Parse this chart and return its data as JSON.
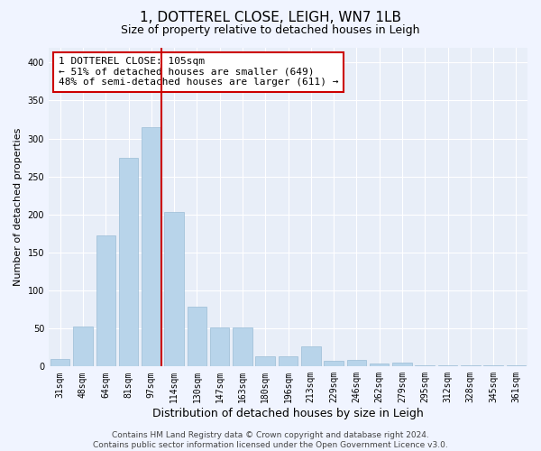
{
  "title": "1, DOTTEREL CLOSE, LEIGH, WN7 1LB",
  "subtitle": "Size of property relative to detached houses in Leigh",
  "xlabel": "Distribution of detached houses by size in Leigh",
  "ylabel": "Number of detached properties",
  "bar_color": "#b8d4ea",
  "bar_edge_color": "#9bbdd6",
  "background_color": "#e8eef8",
  "grid_color": "#ffffff",
  "categories": [
    "31sqm",
    "48sqm",
    "64sqm",
    "81sqm",
    "97sqm",
    "114sqm",
    "130sqm",
    "147sqm",
    "163sqm",
    "180sqm",
    "196sqm",
    "213sqm",
    "229sqm",
    "246sqm",
    "262sqm",
    "279sqm",
    "295sqm",
    "312sqm",
    "328sqm",
    "345sqm",
    "361sqm"
  ],
  "values": [
    10,
    53,
    172,
    275,
    315,
    203,
    79,
    52,
    51,
    14,
    14,
    26,
    7,
    9,
    4,
    5,
    2,
    1,
    1,
    1,
    1
  ],
  "ylim": [
    0,
    420
  ],
  "yticks": [
    0,
    50,
    100,
    150,
    200,
    250,
    300,
    350,
    400
  ],
  "vline_x_index": 4,
  "annotation_text": "1 DOTTEREL CLOSE: 105sqm\n← 51% of detached houses are smaller (649)\n48% of semi-detached houses are larger (611) →",
  "annotation_box_color": "#ffffff",
  "annotation_box_edge_color": "#cc0000",
  "vline_color": "#cc0000",
  "footer_text": "Contains HM Land Registry data © Crown copyright and database right 2024.\nContains public sector information licensed under the Open Government Licence v3.0.",
  "title_fontsize": 11,
  "subtitle_fontsize": 9,
  "xlabel_fontsize": 9,
  "ylabel_fontsize": 8,
  "tick_fontsize": 7,
  "annotation_fontsize": 8,
  "footer_fontsize": 6.5
}
